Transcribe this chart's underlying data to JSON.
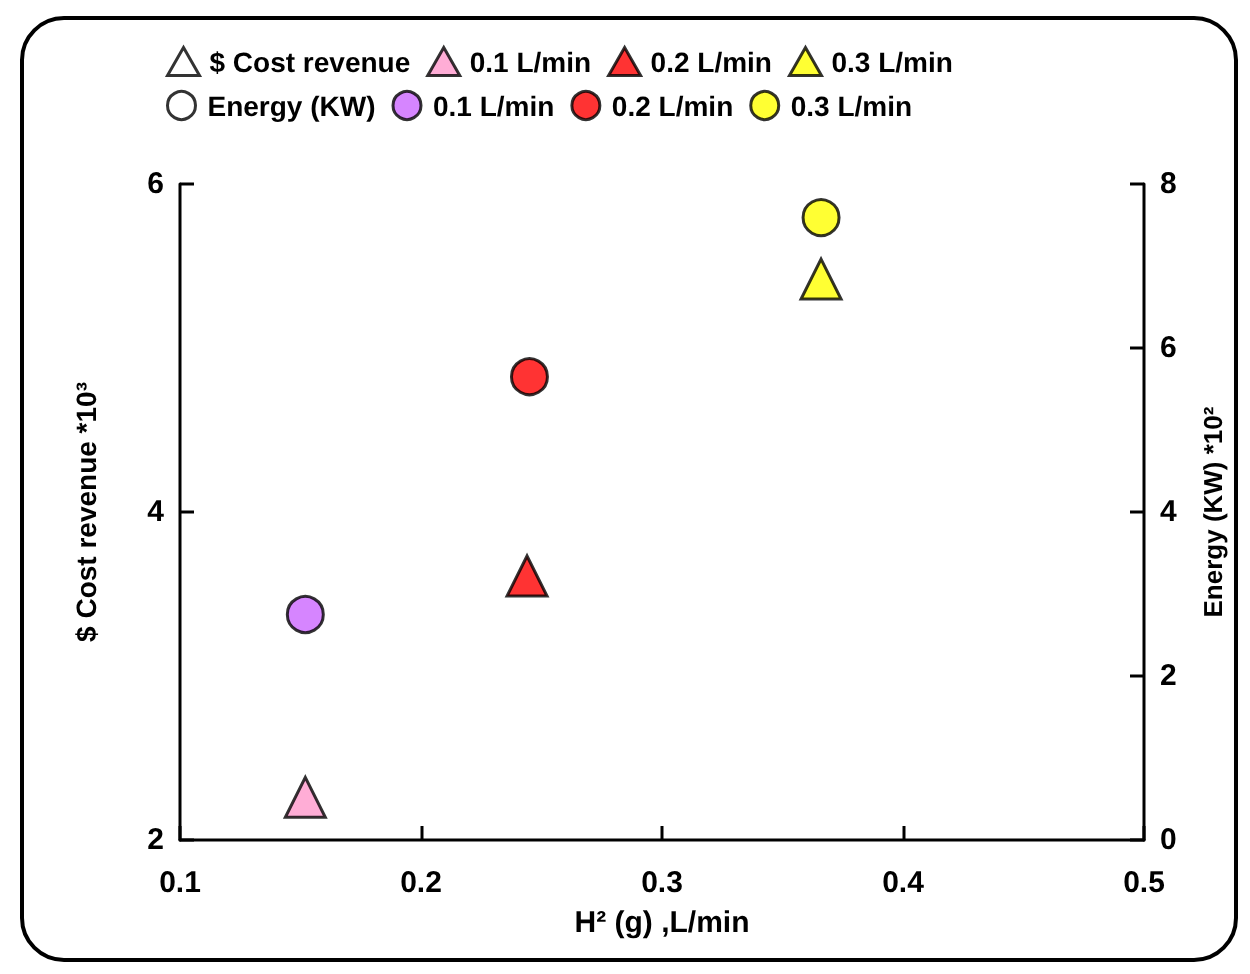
{
  "chart_data": {
    "type": "scatter",
    "xlabel": "H² (g) ,L/min",
    "ylabel": "$ Cost revenue *10³",
    "y2label": "Energy (KW) *10²",
    "xlim": [
      0.1,
      0.5
    ],
    "xticks": [
      0.1,
      0.2,
      0.3,
      0.4,
      0.5
    ],
    "ylim": [
      2,
      6
    ],
    "yticks": [
      2,
      4,
      6
    ],
    "y2lim": [
      0,
      8
    ],
    "y2ticks": [
      0,
      2,
      4,
      6,
      8
    ],
    "grid": false,
    "legend": "top",
    "series": [
      {
        "name": "$ Cost revenue",
        "color": "#ffffff",
        "marker": "triangle"
      },
      {
        "name": "0.1 L/min",
        "color": "#ff99cc",
        "marker": "triangle",
        "x": [
          0.152
        ],
        "values": [
          2.26
        ]
      },
      {
        "name": "0.2 L/min",
        "color": "#ff0000",
        "marker": "triangle",
        "x": [
          0.244
        ],
        "values": [
          3.61
        ]
      },
      {
        "name": "0.3 L/min",
        "color": "#ffff00",
        "marker": "triangle",
        "x": [
          0.366
        ],
        "values": [
          5.42
        ]
      },
      {
        "name": "Energy (KW)",
        "color": "#ffffff",
        "marker": "circle",
        "axis": "y2"
      },
      {
        "name": "0.1 L/min",
        "color": "#cc66ff",
        "marker": "circle",
        "axis": "y2",
        "x": [
          0.152
        ],
        "values": [
          2.75
        ]
      },
      {
        "name": "0.2 L/min",
        "color": "#ff0000",
        "marker": "circle",
        "axis": "y2",
        "x": [
          0.245
        ],
        "values": [
          5.65
        ]
      },
      {
        "name": "0.3 L/min",
        "color": "#ffff00",
        "marker": "circle",
        "axis": "y2",
        "x": [
          0.366
        ],
        "values": [
          7.59
        ]
      }
    ]
  }
}
